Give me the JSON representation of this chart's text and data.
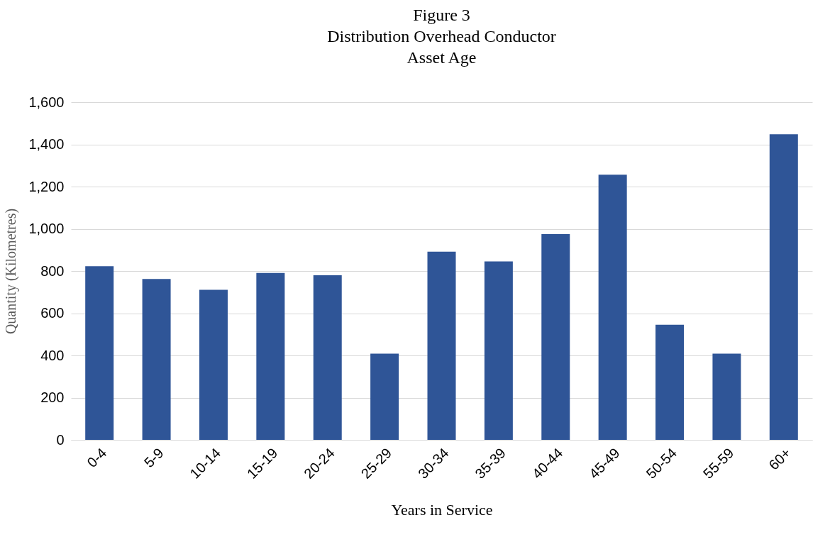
{
  "chart_data": {
    "type": "bar",
    "title": [
      "Figure 3",
      "Distribution Overhead Conductor",
      "Asset Age"
    ],
    "xlabel": "Years in Service",
    "ylabel": "Quantity (Kilometres)",
    "categories": [
      "0-4",
      "5-9",
      "10-14",
      "15-19",
      "20-24",
      "25-29",
      "30-34",
      "35-39",
      "40-44",
      "45-49",
      "50-54",
      "55-59",
      "60+"
    ],
    "values": [
      823,
      762,
      711,
      791,
      780,
      408,
      892,
      845,
      975,
      1256,
      545,
      408,
      1448
    ],
    "color": "#2f5597",
    "ylim": [
      0,
      1600
    ],
    "yticks": [
      {
        "value": 0,
        "label": "0"
      },
      {
        "value": 200,
        "label": "200"
      },
      {
        "value": 400,
        "label": "400"
      },
      {
        "value": 600,
        "label": "600"
      },
      {
        "value": 800,
        "label": "800"
      },
      {
        "value": 1000,
        "label": "1,000"
      },
      {
        "value": 1200,
        "label": "1,200"
      },
      {
        "value": 1400,
        "label": "1,400"
      },
      {
        "value": 1600,
        "label": "1,600"
      }
    ],
    "grid": "y"
  }
}
